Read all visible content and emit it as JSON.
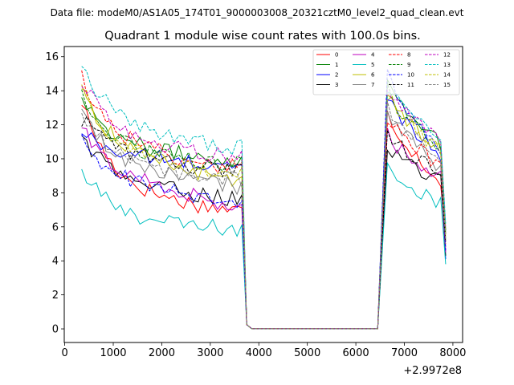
{
  "header": {
    "data_file_label": "Data file: modeM0/AS1A05_174T01_9000003008_20321cztM0_level2_quad_clean.evt"
  },
  "chart_data": {
    "type": "line",
    "title": "Quadrant 1 module wise count rates with 100.0s bins.",
    "xlabel": "",
    "ylabel": "",
    "x_offset_label": "+2.9972e8",
    "xlim": [
      -10,
      8200
    ],
    "ylim": [
      -0.8,
      16.6
    ],
    "x_ticks": [
      0,
      1000,
      2000,
      3000,
      4000,
      5000,
      6000,
      7000,
      8000
    ],
    "x_tick_labels": [
      "0",
      "1000",
      "2000",
      "3000",
      "4000",
      "5000",
      "6000",
      "7000",
      "8000"
    ],
    "y_ticks": [
      0,
      2,
      4,
      6,
      8,
      10,
      12,
      14,
      16
    ],
    "y_tick_labels": [
      "0",
      "2",
      "4",
      "6",
      "8",
      "10",
      "12",
      "14",
      "16"
    ],
    "grid": false,
    "legend_position": "top-right",
    "legend_columns": 4,
    "series": [
      {
        "name": "0",
        "color": "#ff0000",
        "style": "solid",
        "seg1": [
          13.4,
          7.4,
          6.9
        ],
        "seg2": [
          12.6,
          8.7,
          5.6
        ]
      },
      {
        "name": "1",
        "color": "#008000",
        "style": "solid",
        "seg1": [
          13.8,
          10.2,
          9.9
        ],
        "seg2": [
          14.6,
          10.9,
          5.8
        ]
      },
      {
        "name": "2",
        "color": "#0000ff",
        "style": "solid",
        "seg1": [
          11.6,
          9.9,
          9.4
        ],
        "seg2": [
          13.6,
          10.3,
          4.1
        ]
      },
      {
        "name": "3",
        "color": "#000000",
        "style": "solid",
        "seg1": [
          11.4,
          8.1,
          7.6
        ],
        "seg2": [
          10.8,
          8.6,
          4.3
        ]
      },
      {
        "name": "4",
        "color": "#bf00bf",
        "style": "solid",
        "seg1": [
          11.8,
          8.3,
          7.0
        ],
        "seg2": [
          11.4,
          8.9,
          4.5
        ]
      },
      {
        "name": "5",
        "color": "#00bfbf",
        "style": "solid",
        "seg1": [
          9.3,
          6.1,
          5.8
        ],
        "seg2": [
          9.5,
          7.4,
          3.8
        ]
      },
      {
        "name": "6",
        "color": "#bfbf00",
        "style": "solid",
        "seg1": [
          14.2,
          9.6,
          8.6
        ],
        "seg2": [
          13.7,
          10.6,
          5.3
        ]
      },
      {
        "name": "7",
        "color": "#808080",
        "style": "solid",
        "seg1": [
          12.7,
          9.0,
          8.3
        ],
        "seg2": [
          12.9,
          9.4,
          4.8
        ]
      },
      {
        "name": "8",
        "color": "#ff0000",
        "style": "dashed",
        "seg1": [
          14.9,
          10.1,
          9.4
        ],
        "seg2": [
          12.4,
          9.6,
          5.0
        ]
      },
      {
        "name": "9",
        "color": "#008000",
        "style": "dashed",
        "seg1": [
          13.7,
          9.9,
          9.6
        ],
        "seg2": [
          14.0,
          10.6,
          5.6
        ]
      },
      {
        "name": "10",
        "color": "#0000ff",
        "style": "dashed",
        "seg1": [
          11.0,
          8.2,
          7.1
        ],
        "seg2": [
          15.0,
          10.2,
          4.6
        ]
      },
      {
        "name": "11",
        "color": "#000000",
        "style": "dashed",
        "seg1": [
          12.4,
          9.8,
          9.2
        ],
        "seg2": [
          11.6,
          9.1,
          5.1
        ]
      },
      {
        "name": "12",
        "color": "#bf00bf",
        "style": "dashed",
        "seg1": [
          14.7,
          10.6,
          10.0
        ],
        "seg2": [
          14.1,
          11.0,
          5.9
        ]
      },
      {
        "name": "13",
        "color": "#00bfbf",
        "style": "dashed",
        "seg1": [
          15.8,
          11.2,
          10.6
        ],
        "seg2": [
          14.2,
          11.2,
          6.2
        ]
      },
      {
        "name": "14",
        "color": "#bfbf00",
        "style": "dashed",
        "seg1": [
          14.4,
          9.6,
          9.0
        ],
        "seg2": [
          13.9,
          10.4,
          5.5
        ]
      },
      {
        "name": "15",
        "color": "#808080",
        "style": "dashed",
        "seg1": [
          12.9,
          9.1,
          8.8
        ],
        "seg2": [
          13.1,
          10.0,
          5.2
        ]
      }
    ]
  }
}
